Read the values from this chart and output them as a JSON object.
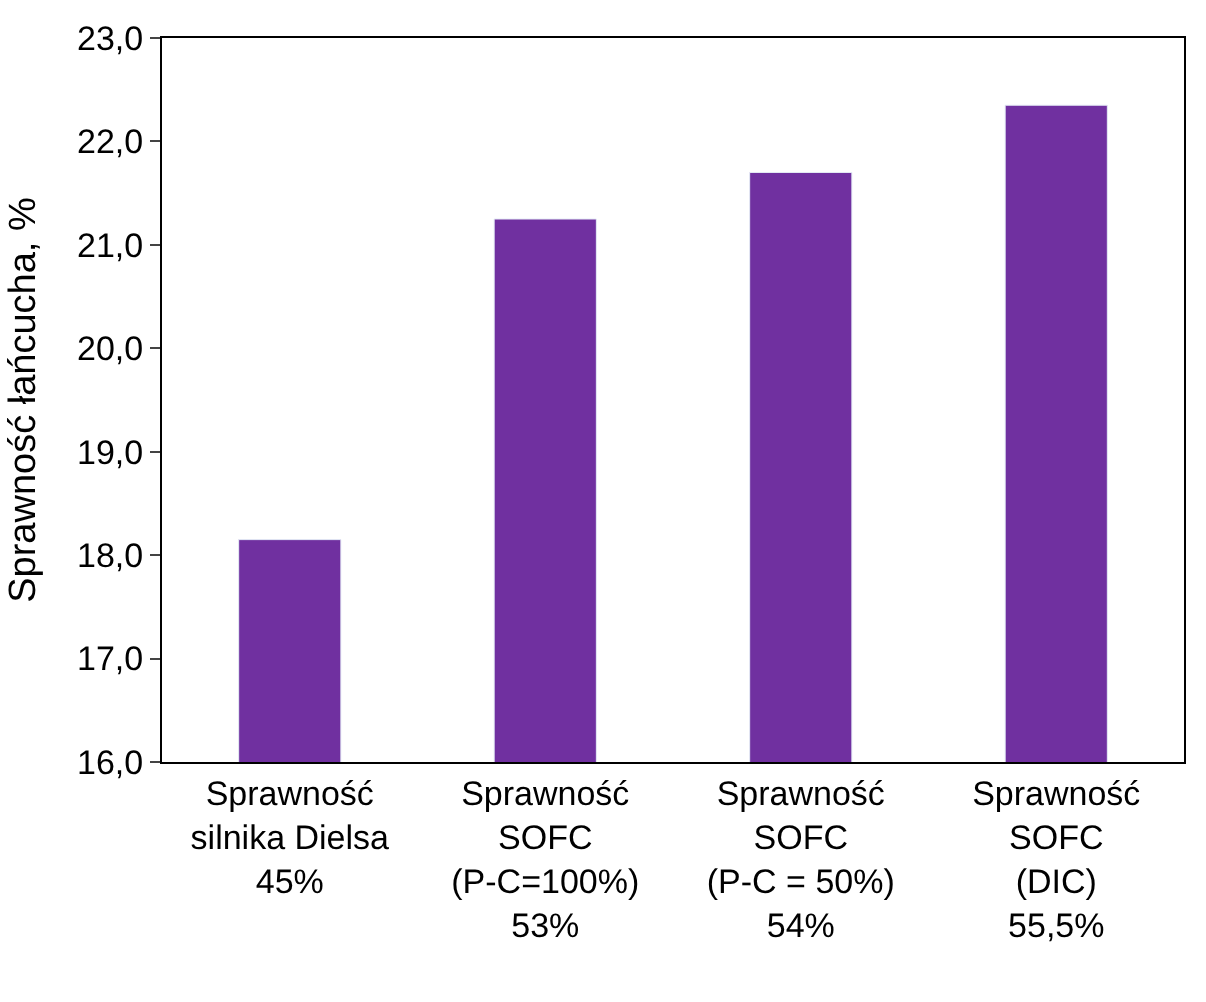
{
  "chart_data": {
    "type": "bar",
    "ylabel": "Sprawność łańcucha, %",
    "categories": [
      "Sprawność\nsilnika Dielsa\n45%",
      "Sprawność\nSOFC\n(P-C=100%)\n53%",
      "Sprawność\nSOFC\n(P-C = 50%)\n54%",
      "Sprawność\nSOFC\n(DIC)\n55,5%"
    ],
    "values": [
      18.15,
      21.25,
      21.7,
      22.35
    ],
    "color": "#7030a0",
    "ylim": [
      16,
      23
    ],
    "yticks": [
      {
        "value": 16,
        "label": "16,0"
      },
      {
        "value": 17,
        "label": "17,0"
      },
      {
        "value": 18,
        "label": "18,0"
      },
      {
        "value": 19,
        "label": "19,0"
      },
      {
        "value": 20,
        "label": "20,0"
      },
      {
        "value": 21,
        "label": "21,0"
      },
      {
        "value": 22,
        "label": "22,0"
      },
      {
        "value": 23,
        "label": "23,0"
      }
    ],
    "legend": false
  }
}
